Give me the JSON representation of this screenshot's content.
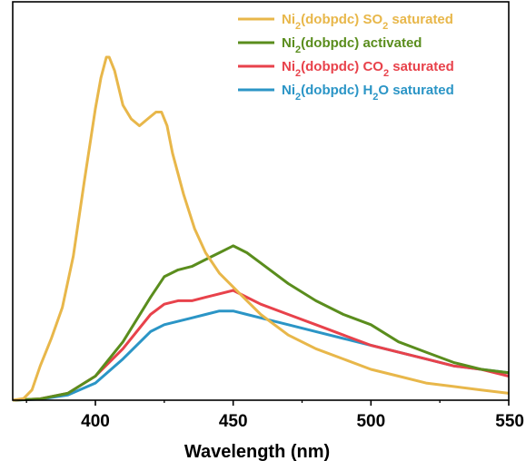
{
  "chart_data": {
    "type": "line",
    "xlabel": "Wavelength (nm)",
    "ylabel": "",
    "xlim": [
      370,
      550
    ],
    "ylim": [
      0,
      1.0
    ],
    "x_ticks": [
      400,
      450,
      500,
      550
    ],
    "y_ticks_shown": false,
    "grid": false,
    "legend_position": "top-right",
    "series": [
      {
        "name": "Ni2(dobpdc) SO2 saturated",
        "label_parts": [
          "Ni",
          "2",
          "(dobpdc) SO",
          "2",
          " saturated"
        ],
        "color": "#e8b74a",
        "x": [
          370,
          374,
          377,
          380,
          384,
          388,
          392,
          396,
          400,
          402,
          404,
          405,
          407,
          410,
          413,
          416,
          419,
          422,
          424,
          426,
          428,
          432,
          436,
          440,
          445,
          450,
          455,
          460,
          470,
          480,
          490,
          500,
          510,
          520,
          530,
          540,
          550
        ],
        "values": [
          0,
          0.005,
          0.03,
          0.1,
          0.18,
          0.27,
          0.42,
          0.64,
          0.85,
          0.94,
          1.0,
          1.0,
          0.96,
          0.86,
          0.82,
          0.8,
          0.82,
          0.84,
          0.84,
          0.8,
          0.72,
          0.6,
          0.5,
          0.43,
          0.37,
          0.33,
          0.29,
          0.25,
          0.19,
          0.15,
          0.12,
          0.09,
          0.07,
          0.05,
          0.04,
          0.03,
          0.02
        ]
      },
      {
        "name": "Ni2(dobpdc) activated",
        "label_parts": [
          "Ni",
          "2",
          "(dobpdc) activated"
        ],
        "color": "#5a8d1d",
        "x": [
          370,
          380,
          390,
          400,
          410,
          420,
          425,
          430,
          435,
          440,
          445,
          450,
          455,
          460,
          470,
          480,
          490,
          500,
          510,
          520,
          530,
          540,
          550
        ],
        "values": [
          0,
          0.004,
          0.02,
          0.07,
          0.17,
          0.3,
          0.36,
          0.38,
          0.39,
          0.41,
          0.43,
          0.45,
          0.43,
          0.4,
          0.34,
          0.29,
          0.25,
          0.22,
          0.17,
          0.14,
          0.11,
          0.09,
          0.08
        ]
      },
      {
        "name": "Ni2(dobpdc) CO2 saturated",
        "label_parts": [
          "Ni",
          "2",
          "(dobpdc) CO",
          "2",
          " saturated"
        ],
        "color": "#e8424b",
        "x": [
          370,
          380,
          390,
          400,
          410,
          420,
          425,
          430,
          435,
          440,
          445,
          450,
          455,
          460,
          470,
          480,
          490,
          500,
          510,
          520,
          530,
          540,
          550
        ],
        "values": [
          0,
          0.004,
          0.02,
          0.07,
          0.15,
          0.25,
          0.28,
          0.29,
          0.29,
          0.3,
          0.31,
          0.32,
          0.3,
          0.28,
          0.25,
          0.22,
          0.19,
          0.16,
          0.14,
          0.12,
          0.1,
          0.09,
          0.07
        ]
      },
      {
        "name": "Ni2(dobpdc) H2O saturated",
        "label_parts": [
          "Ni",
          "2",
          "(dobpdc) H",
          "2",
          "O saturated"
        ],
        "color": "#2b95c6",
        "x": [
          370,
          380,
          390,
          400,
          410,
          420,
          425,
          430,
          435,
          440,
          445,
          450,
          455,
          460,
          470,
          480,
          490,
          500,
          510,
          520,
          530,
          540,
          550
        ],
        "values": [
          0,
          0.003,
          0.015,
          0.05,
          0.12,
          0.2,
          0.22,
          0.23,
          0.24,
          0.25,
          0.26,
          0.26,
          0.25,
          0.24,
          0.22,
          0.2,
          0.18,
          0.16,
          0.14,
          0.12,
          0.1,
          0.09,
          0.08
        ]
      }
    ]
  }
}
